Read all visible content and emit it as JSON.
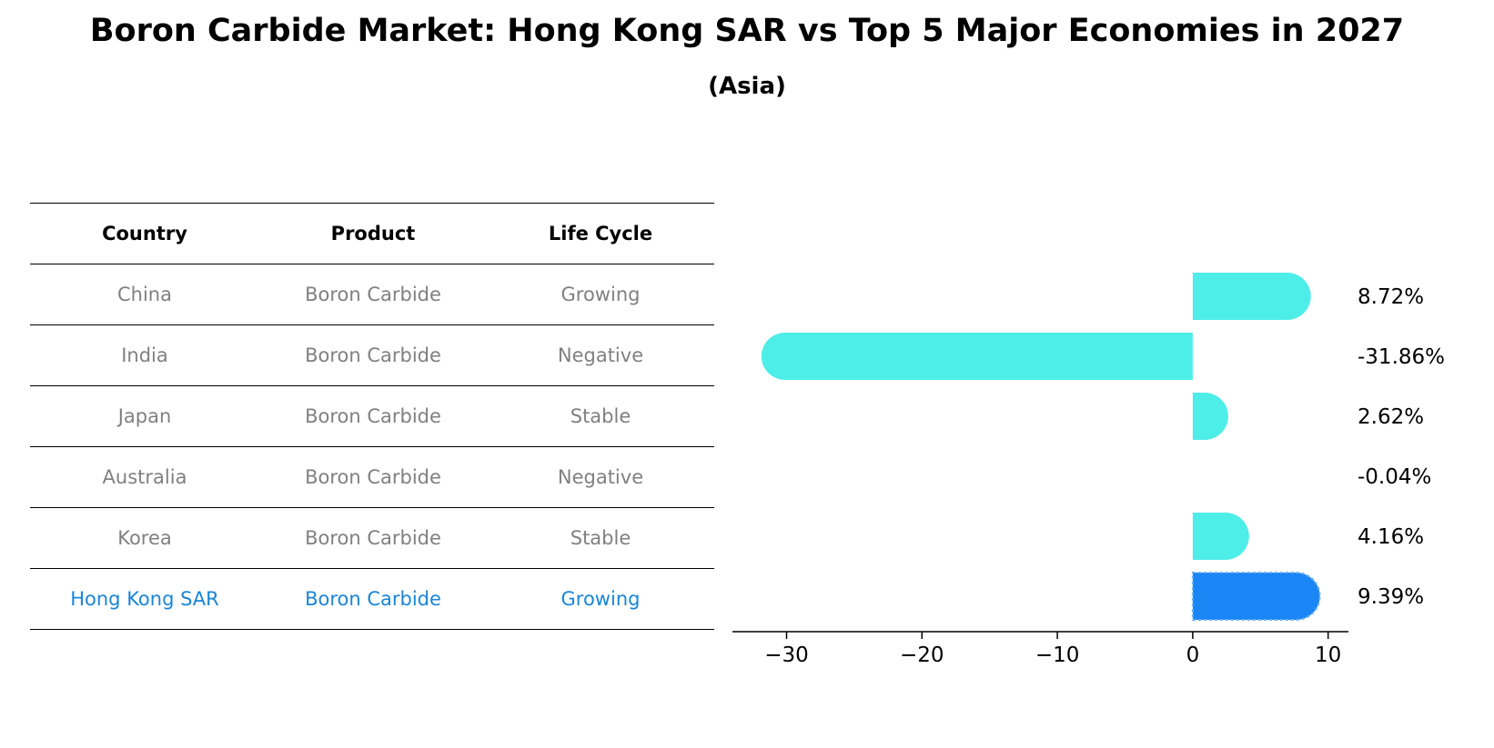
{
  "title": "Boron Carbide Market: Hong Kong SAR vs Top 5 Major Economies in 2027",
  "subtitle": "(Asia)",
  "table": {
    "headers": [
      "Country",
      "Product",
      "Life Cycle"
    ],
    "rows": [
      [
        "China",
        "Boron Carbide",
        "Growing"
      ],
      [
        "India",
        "Boron Carbide",
        "Negative"
      ],
      [
        "Japan",
        "Boron Carbide",
        "Stable"
      ],
      [
        "Australia",
        "Boron Carbide",
        "Negative"
      ],
      [
        "Korea",
        "Boron Carbide",
        "Stable"
      ],
      [
        "Hong Kong SAR",
        "Boron Carbide",
        "Growing"
      ]
    ]
  },
  "colors": {
    "bar": "#4eeee8",
    "highlight": "#1a85f5",
    "table_text": "#808080",
    "table_highlight_text": "#1a85d6"
  },
  "chart_data": {
    "type": "bar",
    "orientation": "horizontal",
    "categories": [
      "China",
      "India",
      "Japan",
      "Australia",
      "Korea",
      "Hong Kong SAR"
    ],
    "values": [
      8.72,
      -31.86,
      2.62,
      -0.04,
      4.16,
      9.39
    ],
    "value_labels": [
      "8.72%",
      "-31.86%",
      "2.62%",
      "-0.04%",
      "4.16%",
      "9.39%"
    ],
    "highlight": "Hong Kong SAR",
    "xticks": [
      -30,
      -20,
      -10,
      0,
      10
    ],
    "xtick_labels": [
      "−30",
      "−20",
      "−10",
      "0",
      "10"
    ],
    "xlim": [
      -34,
      11.5
    ],
    "grid": false
  }
}
